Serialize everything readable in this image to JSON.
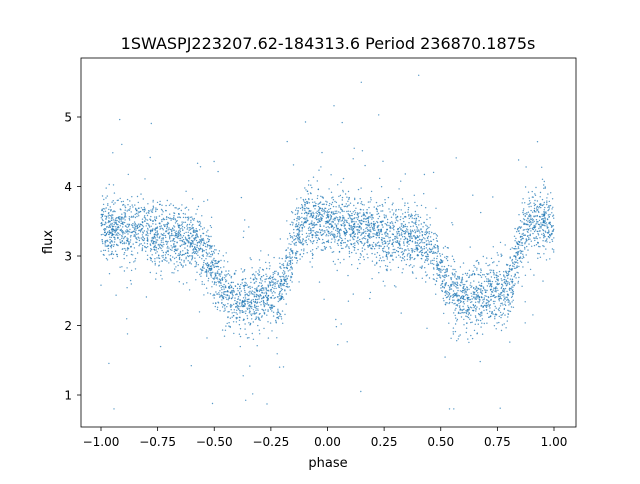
{
  "chart_data": {
    "type": "scatter",
    "title": "1SWASPJ223207.62-184313.6 Period 236870.1875s",
    "xlabel": "phase",
    "ylabel": "flux",
    "xlim": [
      -1.1,
      1.1
    ],
    "ylim": [
      0.54,
      5.85
    ],
    "xticks": [
      "−1.00",
      "−0.75",
      "−0.50",
      "−0.25",
      "0.00",
      "0.25",
      "0.50",
      "0.75",
      "1.00"
    ],
    "xtick_values": [
      -1,
      -0.75,
      -0.5,
      -0.25,
      0,
      0.25,
      0.5,
      0.75,
      1
    ],
    "yticks": [
      "1",
      "2",
      "3",
      "4",
      "5"
    ],
    "ytick_values": [
      1,
      2,
      3,
      4,
      5
    ],
    "grid": false,
    "color": "#1f77b4",
    "binned_profile": {
      "phase": [
        -1,
        -0.9,
        -0.8,
        -0.7,
        -0.6,
        -0.55,
        -0.5,
        -0.45,
        -0.4,
        -0.35,
        -0.3,
        -0.25,
        -0.2,
        -0.15,
        -0.1,
        -0.05,
        0,
        0.1,
        0.2,
        0.3,
        0.4,
        0.45,
        0.5,
        0.55,
        0.6,
        0.65,
        0.7,
        0.75,
        0.8,
        0.85,
        0.9,
        0.95,
        1
      ],
      "flux_mean": [
        3.4,
        3.4,
        3.35,
        3.3,
        3.25,
        3.1,
        2.75,
        2.45,
        2.35,
        2.4,
        2.4,
        2.45,
        2.5,
        3.2,
        3.55,
        3.5,
        3.45,
        3.4,
        3.35,
        3.3,
        3.25,
        3.1,
        2.75,
        2.45,
        2.35,
        2.4,
        2.4,
        2.45,
        2.5,
        3.2,
        3.55,
        3.5,
        3.45
      ],
      "flux_spread": 0.22,
      "outlier_range": [
        0.8,
        5.6
      ]
    }
  }
}
